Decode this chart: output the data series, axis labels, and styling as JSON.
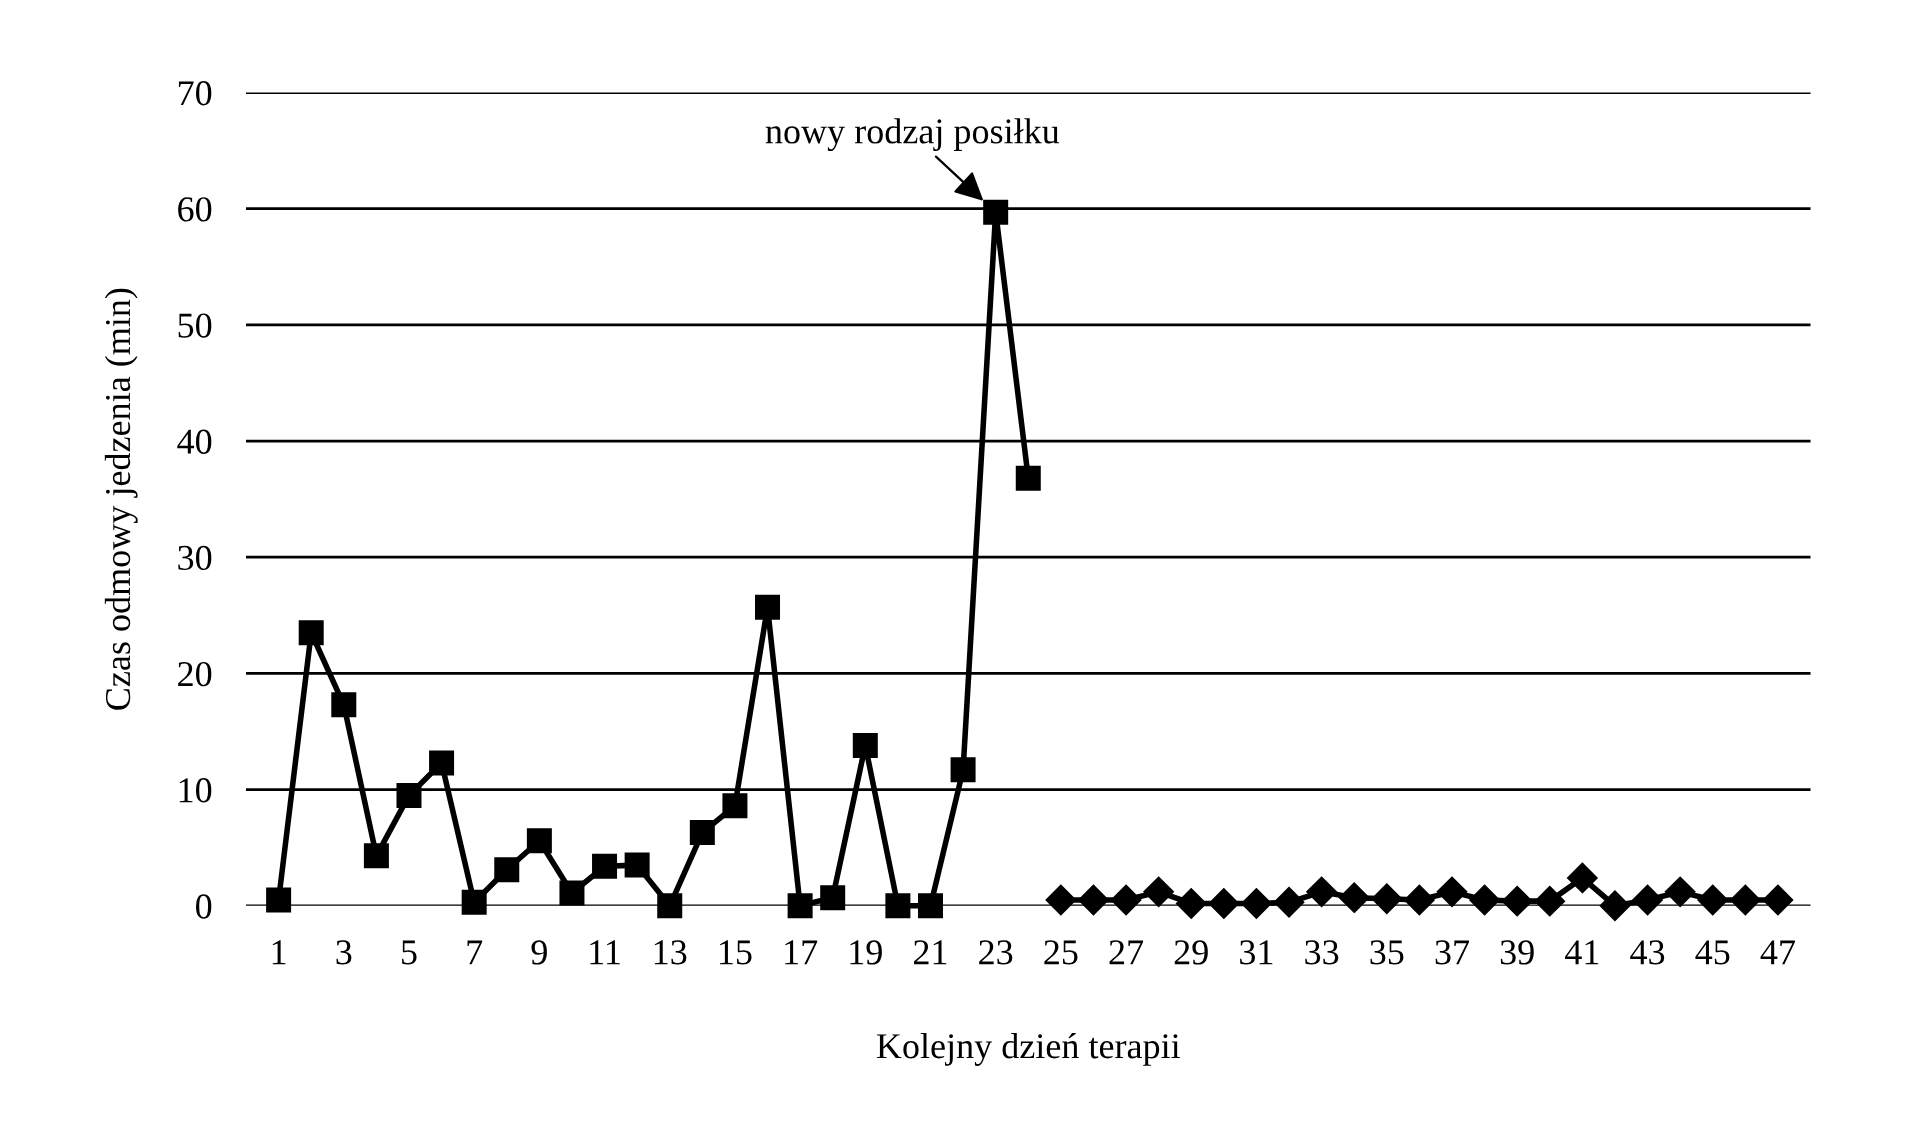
{
  "chart_data": {
    "type": "line",
    "xlabel": "Kolejny dzień terapii",
    "ylabel": "Czas odmowy jedzenia (min)",
    "xlim": [
      0,
      48
    ],
    "xticks": [
      1,
      3,
      5,
      7,
      9,
      11,
      13,
      15,
      17,
      19,
      21,
      23,
      25,
      27,
      29,
      31,
      33,
      35,
      37,
      39,
      41,
      43,
      45,
      47
    ],
    "ylim": [
      0,
      70
    ],
    "yticks": [
      0,
      10,
      20,
      30,
      40,
      50,
      60,
      70
    ],
    "grid": "y",
    "series": [
      {
        "color": "#000000",
        "marker": "square",
        "x": [
          1,
          2,
          3,
          4,
          5,
          6,
          7,
          8,
          9,
          10,
          11,
          12,
          13,
          14,
          15,
          16,
          17,
          18,
          19,
          20,
          21,
          22,
          23,
          24
        ],
        "values": [
          0.5,
          23.5,
          17.3,
          4.3,
          9.5,
          12.3,
          0.3,
          3.1,
          5.6,
          1.1,
          3.4,
          3.5,
          0,
          6.3,
          8.6,
          25.7,
          0,
          0.7,
          13.8,
          0,
          0,
          11.7,
          59.7,
          36.8
        ]
      },
      {
        "color": "#000000",
        "marker": "diamond",
        "x": [
          25,
          26,
          27,
          28,
          29,
          30,
          31,
          32,
          33,
          34,
          35,
          36,
          37,
          38,
          39,
          40,
          41,
          42,
          43,
          44,
          45,
          46,
          47
        ],
        "values": [
          0.5,
          0.5,
          0.5,
          1.2,
          0.2,
          0.2,
          0.2,
          0.3,
          1.2,
          0.7,
          0.6,
          0.5,
          1.2,
          0.5,
          0.4,
          0.4,
          2.4,
          0,
          0.5,
          1.2,
          0.5,
          0.5,
          0.5
        ]
      }
    ],
    "annotations": [
      {
        "text": "nowy rodzaj posiłku",
        "x": 23,
        "y": 59.7
      }
    ]
  }
}
